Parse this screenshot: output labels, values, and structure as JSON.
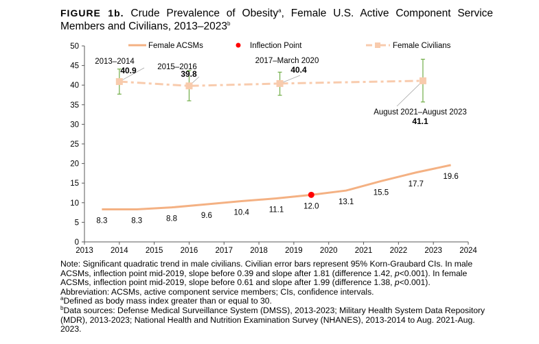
{
  "title": {
    "figure_label": "FIGURE 1b.",
    "text": "Crude Prevalence of Obesity",
    "sup_a": "a",
    "text2": ", Female U.S. Active Component Service Members and Civilians, 2013–2023",
    "sup_b": "b"
  },
  "colors": {
    "acsm_line": "#f4b183",
    "civilian_line": "#f8cbad",
    "error_bar": "#70ad47",
    "inflection": "#ff0000",
    "leader": "#a6a6a6",
    "axis": "#595959"
  },
  "chart_data": {
    "type": "line",
    "xlim": [
      2013,
      2024
    ],
    "ylim": [
      0,
      50
    ],
    "xticks": [
      "2013",
      "2014",
      "2015",
      "2016",
      "2017",
      "2018",
      "2019",
      "2020",
      "2021",
      "2022",
      "2023",
      "2024"
    ],
    "yticks": [
      "0",
      "5",
      "10",
      "15",
      "20",
      "25",
      "30",
      "35",
      "40",
      "45",
      "50"
    ],
    "grid": false,
    "legend_placement": "top",
    "legend": [
      "Female ACSMs",
      "Inflection Point",
      "Female Civilians"
    ],
    "series": [
      {
        "name": "Female ACSMs",
        "style": "solid",
        "x": [
          2013.5,
          2014.5,
          2015.5,
          2016.5,
          2017.5,
          2018.5,
          2019.5,
          2020.5,
          2021.5,
          2022.5,
          2023.5
        ],
        "y": [
          8.3,
          8.3,
          8.8,
          9.6,
          10.4,
          11.1,
          12.0,
          13.1,
          15.5,
          17.7,
          19.6
        ],
        "labels": [
          "8.3",
          "8.3",
          "8.8",
          "9.6",
          "10.4",
          "11.1",
          "12.0",
          "13.1",
          "15.5",
          "17.7",
          "19.6"
        ]
      },
      {
        "name": "Female Civilians",
        "style": "dash-dot",
        "marker": "square",
        "x": [
          2014.0,
          2016.0,
          2018.6,
          2022.7
        ],
        "y": [
          40.9,
          39.8,
          40.4,
          41.1
        ],
        "ci_low": [
          37.7,
          36.0,
          37.4,
          35.7
        ],
        "ci_high": [
          44.1,
          43.7,
          43.3,
          46.6
        ],
        "period_labels": [
          "2013–2014",
          "2015–2016",
          "2017–March 2020",
          "August 2021–August 2023"
        ],
        "labels": [
          "40.9",
          "39.8",
          "40.4",
          "41.1"
        ]
      }
    ],
    "inflection_point": {
      "name": "Inflection Point",
      "x": 2019.5,
      "y": 12.0
    }
  },
  "notes": {
    "line1": "Note: Significant quadratic trend in male civilians. Civilian error bars represent 95% Korn-Graubard CIs. In male",
    "line2a": "ACSMs, inflection point mid-2019, slope before 0.39 and slope after 1.81 (difference 1.42, ",
    "p": "p",
    "line2b": "<0.001). In female",
    "line3a": "ACSMs, inflection point mid-2019, slope before 0.61 and slope after 1.99 (difference 1.38, ",
    "line3b": "<0.001).",
    "line4": "Abbreviation: ACSMs, active component service members; CIs, confidence intervals.",
    "fn_a_mark": "a",
    "fn_a": "Defined as body mass index greater than or equal to 30.",
    "fn_b_mark": "b",
    "fn_b1": "Data sources: Defense Medical Surveillance System (DMSS), 2013-2023; Military Health System Data Repository",
    "fn_b2": "(MDR), 2013-2023; National Health and Nutrition Examination Survey (NHANES), 2013-2014 to Aug. 2021-Aug.",
    "fn_b3": "2023."
  }
}
